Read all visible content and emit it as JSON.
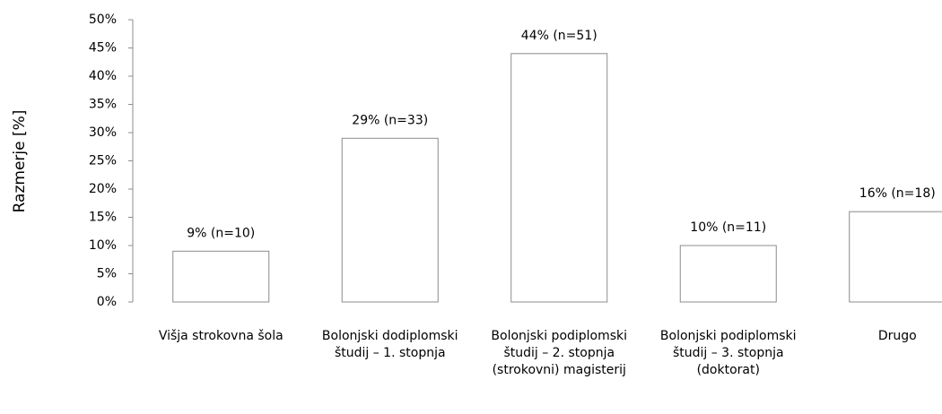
{
  "chart_data": {
    "type": "bar",
    "y_label": "Razmerje [%]",
    "categories": [
      "Višja strokovna šola",
      "Bolonjski dodiplomski študij – 1. stopnja",
      "Bolonjski podiplomski študij – 2. stopnja (strokovni) magisterij",
      "Bolonjski podiplomski študij – 3. stopnja (doktorat)",
      "Drugo"
    ],
    "values": [
      9,
      29,
      44,
      10,
      16
    ],
    "value_labels": [
      "9% (n=10)",
      "29% (n=33)",
      "44% (n=51)",
      "10% (n=11)",
      "16% (n=18)"
    ],
    "color": "#ffffff",
    "edge_color": "#8c8c8c",
    "ylim": [
      0,
      50
    ],
    "yticks": [
      {
        "value": 0,
        "label": "0%"
      },
      {
        "value": 5,
        "label": "5%"
      },
      {
        "value": 10,
        "label": "10%"
      },
      {
        "value": 15,
        "label": "15%"
      },
      {
        "value": 20,
        "label": "20%"
      },
      {
        "value": 25,
        "label": "25%"
      },
      {
        "value": 30,
        "label": "30%"
      },
      {
        "value": 35,
        "label": "35%"
      },
      {
        "value": 40,
        "label": "40%"
      },
      {
        "value": 45,
        "label": "45%"
      },
      {
        "value": 50,
        "label": "50%"
      }
    ],
    "grid": false
  }
}
